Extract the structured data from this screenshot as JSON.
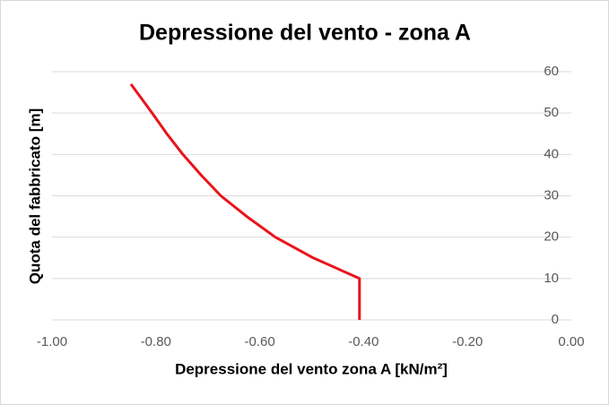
{
  "chart_data": {
    "type": "line",
    "title": "Depressione del vento - zona A",
    "x_label": "Depressione del vento zona A [kN/m²]",
    "y_label": "Quota del fabbricato [m]",
    "x": [
      -0.408,
      -0.408,
      -0.497,
      -0.57,
      -0.625,
      -0.675,
      -0.713,
      -0.748,
      -0.779,
      -0.807,
      -0.848
    ],
    "values": [
      0,
      10,
      15,
      20,
      25,
      30,
      35,
      40,
      45,
      50,
      57
    ],
    "color": "#e8141c",
    "xlim": [
      -1,
      0
    ],
    "xticks": [
      {
        "value": -1,
        "label": "-1.00"
      },
      {
        "value": -0.8,
        "label": "-0.80"
      },
      {
        "value": -0.6,
        "label": "-0.60"
      },
      {
        "value": -0.4,
        "label": "-0.40"
      },
      {
        "value": -0.2,
        "label": "-0.20"
      },
      {
        "value": 0,
        "label": "0.00"
      }
    ],
    "ylim": [
      0,
      60
    ],
    "yticks": [
      0,
      10,
      20,
      30,
      40,
      50,
      60
    ],
    "y_axis_side": "right",
    "grid": true
  }
}
